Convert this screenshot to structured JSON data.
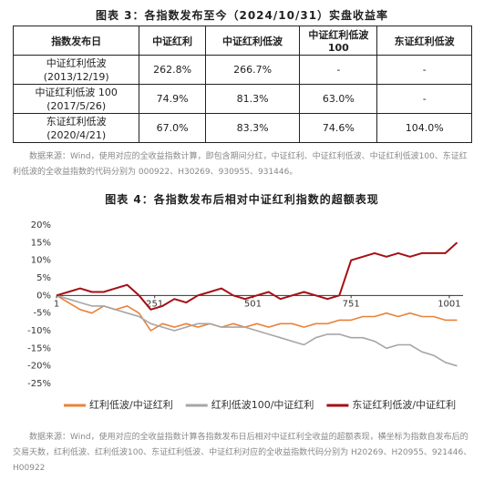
{
  "table_title": "图表 3：各指数发布至今（2024/10/31）实盘收益率",
  "table": {
    "header": [
      "指数发布日",
      "中证红利",
      "中证红利低波",
      "中证红利低波100",
      "东证红利低波"
    ],
    "rows": [
      [
        "中证红利低波",
        "(2013/12/19)",
        "262.8%",
        "266.7%",
        "-",
        "-"
      ],
      [
        "中证红利低波 100",
        "(2017/5/26)",
        "74.9%",
        "81.3%",
        "63.0%",
        "-"
      ],
      [
        "东证红利低波",
        "(2020/4/21)",
        "67.0%",
        "83.3%",
        "74.6%",
        "104.0%"
      ]
    ]
  },
  "table_note": "数据来源：Wind，使用对应的全收益指数计算，即包含期间分红，中证红利、中证红利低波、中证红利低波100、东证红利低波的全收益指数的代码分别为 000922、H30269、930955、931446。",
  "chart_data": {
    "type": "line",
    "title": "图表 4：各指数发布后相对中证红利指数的超额表现",
    "x": [
      1,
      31,
      61,
      91,
      121,
      151,
      181,
      211,
      241,
      271,
      301,
      331,
      361,
      391,
      421,
      451,
      481,
      511,
      541,
      571,
      601,
      631,
      661,
      691,
      721,
      751,
      781,
      811,
      841,
      871,
      901,
      931,
      961,
      991,
      1021
    ],
    "series": [
      {
        "name": "红利低波/中证红利",
        "color": "#e8833a",
        "values": [
          0,
          -2,
          -4,
          -5,
          -3,
          -4,
          -3,
          -5,
          -10,
          -8,
          -9,
          -8,
          -9,
          -8,
          -9,
          -8,
          -9,
          -8,
          -9,
          -8,
          -8,
          -9,
          -8,
          -8,
          -7,
          -7,
          -6,
          -6,
          -5,
          -6,
          -5,
          -6,
          -6,
          -7,
          -7
        ]
      },
      {
        "name": "红利低波100/中证红利",
        "color": "#a6a6a6",
        "values": [
          0,
          -1,
          -2,
          -3,
          -3,
          -4,
          -5,
          -6,
          -8,
          -9,
          -10,
          -9,
          -8,
          -8,
          -9,
          -9,
          -9,
          -10,
          -11,
          -12,
          -13,
          -14,
          -12,
          -11,
          -11,
          -12,
          -12,
          -13,
          -15,
          -14,
          -14,
          -16,
          -17,
          -19,
          -20
        ]
      },
      {
        "name": "东证红利低波/中证红利",
        "color": "#a50f15",
        "values": [
          0,
          1,
          2,
          1,
          1,
          2,
          3,
          0,
          -4,
          -3,
          -1,
          -2,
          0,
          1,
          2,
          0,
          -1,
          0,
          1,
          -1,
          0,
          1,
          0,
          -1,
          0,
          10,
          11,
          12,
          11,
          12,
          11,
          12,
          12,
          12,
          15
        ]
      }
    ],
    "xlim": [
      1,
      1036
    ],
    "xticks": [
      1,
      251,
      501,
      751,
      1001
    ],
    "ylim": [
      -25,
      20
    ],
    "yticks": [
      {
        "value": -25,
        "label": "-25%"
      },
      {
        "value": -20,
        "label": "-20%"
      },
      {
        "value": -15,
        "label": "-15%"
      },
      {
        "value": -10,
        "label": "-10%"
      },
      {
        "value": -5,
        "label": "-5%"
      },
      {
        "value": 0,
        "label": "0%"
      },
      {
        "value": 5,
        "label": "5%"
      },
      {
        "value": 10,
        "label": "10%"
      },
      {
        "value": 15,
        "label": "15%"
      },
      {
        "value": 20,
        "label": "20%"
      }
    ],
    "legend": "bottom"
  },
  "chart_note": "数据来源：Wind，使用对应的全收益指数计算各指数发布日后相对中证红利全收益的超额表现，横坐标为指数自发布后的交易天数，红利低波、红利低波100、东证红利低波、中证红利对应的全收益指数代码分别为 H20269、H20955、921446、H00922"
}
